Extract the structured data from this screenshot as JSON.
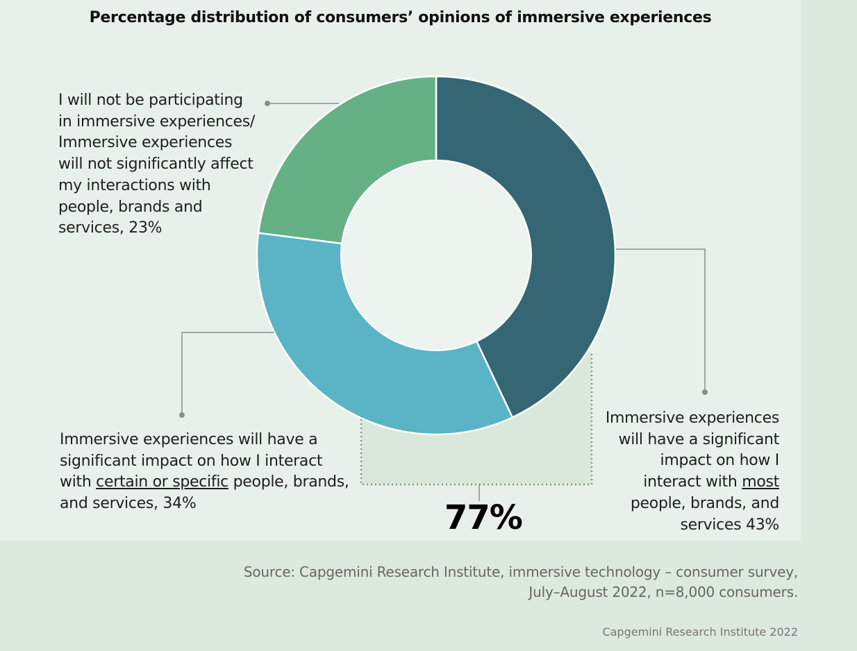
{
  "chart_data": {
    "type": "pie",
    "variant": "donut",
    "title": "Percentage distribution of consumers’ opinions of immersive experiences",
    "slices": [
      {
        "value": 43,
        "label_pre": "Immersive experiences will have a significant impact on how I interact with ",
        "label_emph": "most ",
        "label_post": "people, brands, and services 43%",
        "color": "#356674"
      },
      {
        "value": 34,
        "label_pre": "Immersive experiences will have a significant impact on how I interact with ",
        "label_emph": "certain or specific",
        "label_post": " people, brands, and services, 34%",
        "color": "#5ab4c5"
      },
      {
        "value": 23,
        "label": "I will not be participating in immersive experiences/ Immersive experiences will not significantly affect my interactions with people, brands and services, 23%",
        "color": "#66b086"
      }
    ],
    "combined_callout": "77%"
  },
  "footer": {
    "source_line1": "Source: Capgemini Research Institute, immersive technology – consumer survey,",
    "source_line2": "July–August 2022, n=8,000 consumers.",
    "credit": "Capgemini Research Institute 2022"
  }
}
